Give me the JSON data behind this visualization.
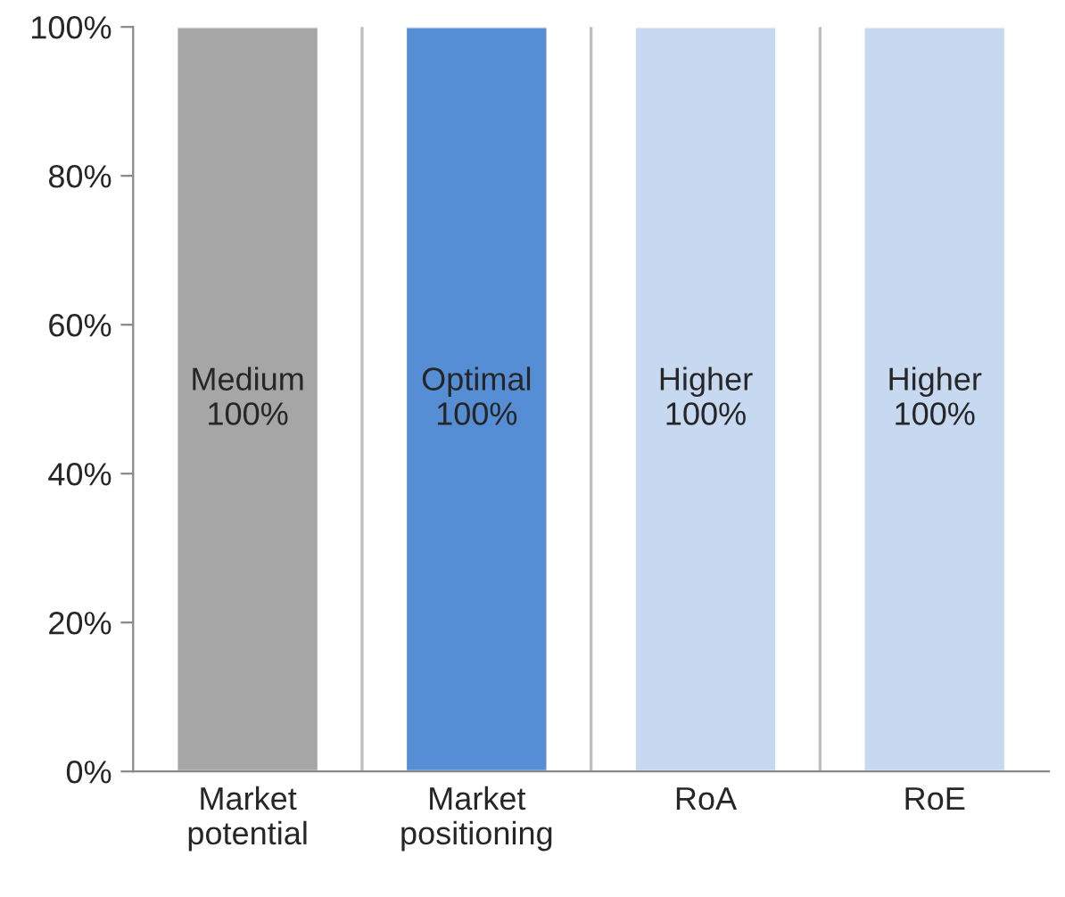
{
  "chart_data": {
    "type": "bar",
    "categories": [
      "Market\npotential",
      "Market\npositioning",
      "RoA",
      "RoE"
    ],
    "values": [
      100,
      100,
      100,
      100
    ],
    "colors": [
      "#a6a6a6",
      "#558ed5",
      "#c6d9f1",
      "#c6d9f1"
    ],
    "value_labels": [
      "Medium\n100%",
      "Optimal\n100%",
      "Higher\n100%",
      "Higher\n100%"
    ],
    "ylim": [
      0,
      100
    ],
    "yticks": [
      {
        "value": 0,
        "label": "0%"
      },
      {
        "value": 20,
        "label": "20%"
      },
      {
        "value": 40,
        "label": "40%"
      },
      {
        "value": 60,
        "label": "60%"
      },
      {
        "value": 80,
        "label": "80%"
      },
      {
        "value": 100,
        "label": "100%"
      }
    ],
    "grid": "x",
    "legend": false
  }
}
